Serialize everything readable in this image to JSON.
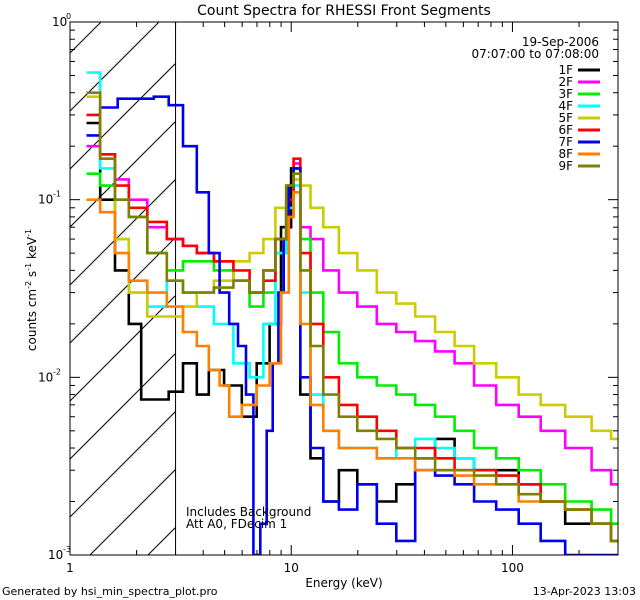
{
  "chart_data": {
    "type": "line",
    "title": "Count Spectra for RHESSI Front Segments",
    "xlabel": "Energy (keV)",
    "ylabel": "counts cm",
    "ylabel_sup1": "-2",
    "ylabel_mid": " s",
    "ylabel_sup2": "-1",
    "ylabel_unit": " keV",
    "ylabel_sup3": "-1",
    "xscale": "log",
    "yscale": "log",
    "xlim": [
      1,
      300
    ],
    "ylim": [
      0.001,
      1
    ],
    "x_ticks": [
      {
        "value": 1,
        "label": "1"
      },
      {
        "value": 10,
        "label": "10"
      },
      {
        "value": 100,
        "label": "100"
      }
    ],
    "y_ticks": [
      {
        "value": 0.001,
        "base": "10",
        "exp": "-3"
      },
      {
        "value": 0.01,
        "base": "10",
        "exp": "-2"
      },
      {
        "value": 0.1,
        "base": "10",
        "exp": "-1"
      },
      {
        "value": 1,
        "base": "10",
        "exp": "0"
      }
    ],
    "hatched_region": {
      "x_from": 1,
      "x_to": 3
    },
    "date": "19-Sep-2006",
    "time_range": "07:07:00 to 07:08:00",
    "annotations": [
      "Includes Background",
      "Att A0, FDecim 1"
    ],
    "legend_position": "top-right",
    "series": [
      {
        "name": "1F",
        "color": "#000000",
        "points": [
          [
            1.25,
            0.27
          ],
          [
            1.5,
            0.1
          ],
          [
            1.7,
            0.04
          ],
          [
            2.0,
            0.02
          ],
          [
            2.2,
            0.0075
          ],
          [
            2.6,
            0.0075
          ],
          [
            3.0,
            0.0083
          ],
          [
            3.5,
            0.012
          ],
          [
            4.0,
            0.008
          ],
          [
            4.5,
            0.011
          ],
          [
            5.5,
            0.009
          ],
          [
            6.5,
            0.006
          ],
          [
            7.5,
            0.012
          ],
          [
            8.5,
            0.02
          ],
          [
            9.5,
            0.07
          ],
          [
            10.5,
            0.15
          ],
          [
            11.5,
            0.008
          ],
          [
            13,
            0.0035
          ],
          [
            15,
            0.002
          ],
          [
            18,
            0.003
          ],
          [
            22,
            0.0025
          ],
          [
            27,
            0.002
          ],
          [
            33,
            0.0025
          ],
          [
            40,
            0.0035
          ],
          [
            50,
            0.0045
          ],
          [
            60,
            0.0035
          ],
          [
            75,
            0.003
          ],
          [
            95,
            0.003
          ],
          [
            120,
            0.0025
          ],
          [
            150,
            0.002
          ],
          [
            200,
            0.0015
          ],
          [
            260,
            0.0015
          ],
          [
            300,
            0.0012
          ]
        ]
      },
      {
        "name": "2F",
        "color": "#ff00ff",
        "points": [
          [
            1.25,
            0.2
          ],
          [
            1.5,
            0.18
          ],
          [
            1.7,
            0.13
          ],
          [
            2.0,
            0.1
          ],
          [
            2.5,
            0.07
          ],
          [
            3.0,
            0.06
          ],
          [
            3.5,
            0.055
          ],
          [
            4.0,
            0.05
          ],
          [
            5.0,
            0.045
          ],
          [
            6.0,
            0.035
          ],
          [
            7.0,
            0.03
          ],
          [
            8.0,
            0.04
          ],
          [
            9.0,
            0.06
          ],
          [
            10.0,
            0.09
          ],
          [
            10.5,
            0.16
          ],
          [
            11.5,
            0.07
          ],
          [
            13,
            0.06
          ],
          [
            15,
            0.04
          ],
          [
            18,
            0.03
          ],
          [
            22,
            0.025
          ],
          [
            27,
            0.02
          ],
          [
            33,
            0.018
          ],
          [
            40,
            0.016
          ],
          [
            50,
            0.014
          ],
          [
            60,
            0.012
          ],
          [
            75,
            0.009
          ],
          [
            95,
            0.007
          ],
          [
            120,
            0.006
          ],
          [
            150,
            0.005
          ],
          [
            200,
            0.004
          ],
          [
            260,
            0.003
          ],
          [
            300,
            0.0025
          ]
        ]
      },
      {
        "name": "3F",
        "color": "#00ee00",
        "points": [
          [
            1.25,
            0.14
          ],
          [
            1.5,
            0.12
          ],
          [
            1.7,
            0.1
          ],
          [
            2.0,
            0.08
          ],
          [
            2.5,
            0.05
          ],
          [
            3.0,
            0.04
          ],
          [
            3.5,
            0.045
          ],
          [
            4.0,
            0.045
          ],
          [
            5.0,
            0.04
          ],
          [
            6.0,
            0.035
          ],
          [
            7.0,
            0.025
          ],
          [
            8.0,
            0.03
          ],
          [
            9.0,
            0.05
          ],
          [
            10.0,
            0.08
          ],
          [
            10.5,
            0.15
          ],
          [
            11.5,
            0.06
          ],
          [
            13,
            0.03
          ],
          [
            15,
            0.018
          ],
          [
            18,
            0.012
          ],
          [
            22,
            0.01
          ],
          [
            27,
            0.009
          ],
          [
            33,
            0.008
          ],
          [
            40,
            0.007
          ],
          [
            50,
            0.006
          ],
          [
            60,
            0.005
          ],
          [
            75,
            0.004
          ],
          [
            95,
            0.0035
          ],
          [
            120,
            0.003
          ],
          [
            150,
            0.0025
          ],
          [
            200,
            0.002
          ],
          [
            260,
            0.0018
          ],
          [
            300,
            0.0015
          ]
        ]
      },
      {
        "name": "4F",
        "color": "#00ffff",
        "points": [
          [
            1.25,
            0.52
          ],
          [
            1.5,
            0.15
          ],
          [
            1.7,
            0.06
          ],
          [
            2.0,
            0.03
          ],
          [
            2.5,
            0.025
          ],
          [
            3.0,
            0.035
          ],
          [
            3.5,
            0.03
          ],
          [
            4.0,
            0.025
          ],
          [
            5.0,
            0.02
          ],
          [
            6.0,
            0.012
          ],
          [
            7.0,
            0.01
          ],
          [
            8.0,
            0.02
          ],
          [
            9.0,
            0.05
          ],
          [
            10.0,
            0.09
          ],
          [
            10.5,
            0.12
          ],
          [
            11.5,
            0.03
          ],
          [
            13,
            0.008
          ],
          [
            15,
            0.005
          ],
          [
            18,
            0.004
          ],
          [
            22,
            0.004
          ],
          [
            27,
            0.0035
          ],
          [
            33,
            0.004
          ],
          [
            40,
            0.0045
          ],
          [
            50,
            0.004
          ],
          [
            60,
            0.0035
          ],
          [
            75,
            0.003
          ],
          [
            95,
            0.0028
          ],
          [
            120,
            0.0025
          ],
          [
            150,
            0.002
          ],
          [
            200,
            0.0018
          ],
          [
            260,
            0.0015
          ],
          [
            300,
            0.0012
          ]
        ]
      },
      {
        "name": "5F",
        "color": "#cccc00",
        "points": [
          [
            1.25,
            0.38
          ],
          [
            1.5,
            0.17
          ],
          [
            1.7,
            0.06
          ],
          [
            2.0,
            0.03
          ],
          [
            2.5,
            0.022
          ],
          [
            3.0,
            0.022
          ],
          [
            3.5,
            0.025
          ],
          [
            4.0,
            0.03
          ],
          [
            5.0,
            0.035
          ],
          [
            6.0,
            0.045
          ],
          [
            7.0,
            0.05
          ],
          [
            8.0,
            0.06
          ],
          [
            9.0,
            0.09
          ],
          [
            10.0,
            0.12
          ],
          [
            10.5,
            0.13
          ],
          [
            11.5,
            0.12
          ],
          [
            13,
            0.09
          ],
          [
            15,
            0.07
          ],
          [
            18,
            0.05
          ],
          [
            22,
            0.04
          ],
          [
            27,
            0.03
          ],
          [
            33,
            0.026
          ],
          [
            40,
            0.022
          ],
          [
            50,
            0.018
          ],
          [
            60,
            0.015
          ],
          [
            75,
            0.012
          ],
          [
            95,
            0.01
          ],
          [
            120,
            0.008
          ],
          [
            150,
            0.007
          ],
          [
            200,
            0.006
          ],
          [
            260,
            0.005
          ],
          [
            300,
            0.0045
          ]
        ]
      },
      {
        "name": "6F",
        "color": "#ff0000",
        "points": [
          [
            1.25,
            0.3
          ],
          [
            1.5,
            0.18
          ],
          [
            1.7,
            0.12
          ],
          [
            2.0,
            0.09
          ],
          [
            2.5,
            0.075
          ],
          [
            3.0,
            0.06
          ],
          [
            3.5,
            0.055
          ],
          [
            4.0,
            0.05
          ],
          [
            5.0,
            0.045
          ],
          [
            6.0,
            0.04
          ],
          [
            7.0,
            0.03
          ],
          [
            8.0,
            0.035
          ],
          [
            9.0,
            0.06
          ],
          [
            10.0,
            0.1
          ],
          [
            10.5,
            0.17
          ],
          [
            11.5,
            0.05
          ],
          [
            13,
            0.02
          ],
          [
            15,
            0.01
          ],
          [
            18,
            0.007
          ],
          [
            22,
            0.006
          ],
          [
            27,
            0.005
          ],
          [
            33,
            0.004
          ],
          [
            40,
            0.004
          ],
          [
            50,
            0.0035
          ],
          [
            60,
            0.003
          ],
          [
            75,
            0.003
          ],
          [
            95,
            0.0028
          ],
          [
            120,
            0.0025
          ],
          [
            150,
            0.002
          ],
          [
            200,
            0.0018
          ],
          [
            260,
            0.0015
          ],
          [
            300,
            0.0012
          ]
        ]
      },
      {
        "name": "7F",
        "color": "#0000ee",
        "points": [
          [
            1.25,
            0.23
          ],
          [
            1.5,
            0.33
          ],
          [
            1.8,
            0.37
          ],
          [
            2.2,
            0.37
          ],
          [
            2.6,
            0.38
          ],
          [
            3.0,
            0.34
          ],
          [
            3.5,
            0.2
          ],
          [
            4.0,
            0.11
          ],
          [
            4.5,
            0.05
          ],
          [
            5.0,
            0.03
          ],
          [
            5.5,
            0.02
          ],
          [
            6.0,
            0.015
          ],
          [
            6.5,
            0.008
          ],
          [
            7.0,
            0.001
          ],
          [
            7.5,
            0.0015
          ],
          [
            8.0,
            0.005
          ],
          [
            8.5,
            0.012
          ],
          [
            9.0,
            0.03
          ],
          [
            9.5,
            0.06
          ],
          [
            10.0,
            0.12
          ],
          [
            10.5,
            0.15
          ],
          [
            11.5,
            0.01
          ],
          [
            13,
            0.004
          ],
          [
            15,
            0.002
          ],
          [
            18,
            0.0018
          ],
          [
            22,
            0.0025
          ],
          [
            27,
            0.0015
          ],
          [
            33,
            0.0012
          ],
          [
            40,
            0.003
          ],
          [
            50,
            0.0028
          ],
          [
            60,
            0.0025
          ],
          [
            75,
            0.002
          ],
          [
            95,
            0.0018
          ],
          [
            120,
            0.0015
          ],
          [
            150,
            0.0012
          ],
          [
            200,
            0.001
          ],
          [
            260,
            0.001
          ],
          [
            300,
            0.001
          ]
        ]
      },
      {
        "name": "8F",
        "color": "#ff8000",
        "points": [
          [
            1.25,
            0.1
          ],
          [
            1.5,
            0.085
          ],
          [
            1.7,
            0.05
          ],
          [
            2.0,
            0.035
          ],
          [
            2.5,
            0.03
          ],
          [
            3.0,
            0.025
          ],
          [
            3.5,
            0.018
          ],
          [
            4.0,
            0.015
          ],
          [
            4.5,
            0.011
          ],
          [
            5.0,
            0.009
          ],
          [
            5.5,
            0.006
          ],
          [
            6.5,
            0.007
          ],
          [
            7.5,
            0.009
          ],
          [
            8.5,
            0.012
          ],
          [
            9.5,
            0.03
          ],
          [
            10.0,
            0.08
          ],
          [
            10.5,
            0.11
          ],
          [
            11.5,
            0.02
          ],
          [
            13,
            0.007
          ],
          [
            15,
            0.005
          ],
          [
            18,
            0.004
          ],
          [
            22,
            0.004
          ],
          [
            27,
            0.0035
          ],
          [
            33,
            0.0035
          ],
          [
            40,
            0.003
          ],
          [
            50,
            0.003
          ],
          [
            60,
            0.0028
          ],
          [
            75,
            0.0025
          ],
          [
            95,
            0.0025
          ],
          [
            120,
            0.002
          ],
          [
            150,
            0.002
          ],
          [
            200,
            0.0018
          ],
          [
            260,
            0.0015
          ],
          [
            300,
            0.0012
          ]
        ]
      },
      {
        "name": "9F",
        "color": "#808000",
        "points": [
          [
            1.25,
            0.4
          ],
          [
            1.5,
            0.17
          ],
          [
            1.7,
            0.1
          ],
          [
            2.0,
            0.08
          ],
          [
            2.5,
            0.05
          ],
          [
            3.0,
            0.035
          ],
          [
            3.5,
            0.03
          ],
          [
            4.0,
            0.03
          ],
          [
            5.0,
            0.032
          ],
          [
            6.0,
            0.035
          ],
          [
            7.0,
            0.03
          ],
          [
            8.0,
            0.04
          ],
          [
            9.0,
            0.06
          ],
          [
            10.0,
            0.12
          ],
          [
            10.5,
            0.14
          ],
          [
            11.5,
            0.04
          ],
          [
            13,
            0.015
          ],
          [
            15,
            0.008
          ],
          [
            18,
            0.006
          ],
          [
            22,
            0.005
          ],
          [
            27,
            0.0045
          ],
          [
            33,
            0.004
          ],
          [
            40,
            0.0035
          ],
          [
            50,
            0.003
          ],
          [
            60,
            0.003
          ],
          [
            75,
            0.0028
          ],
          [
            95,
            0.0025
          ],
          [
            120,
            0.0022
          ],
          [
            150,
            0.002
          ],
          [
            200,
            0.0018
          ],
          [
            260,
            0.0015
          ],
          [
            300,
            0.0012
          ]
        ]
      }
    ]
  },
  "footer": {
    "generated_by": "Generated by hsi_min_spectra_plot.pro",
    "timestamp": "13-Apr-2023 13:03"
  }
}
